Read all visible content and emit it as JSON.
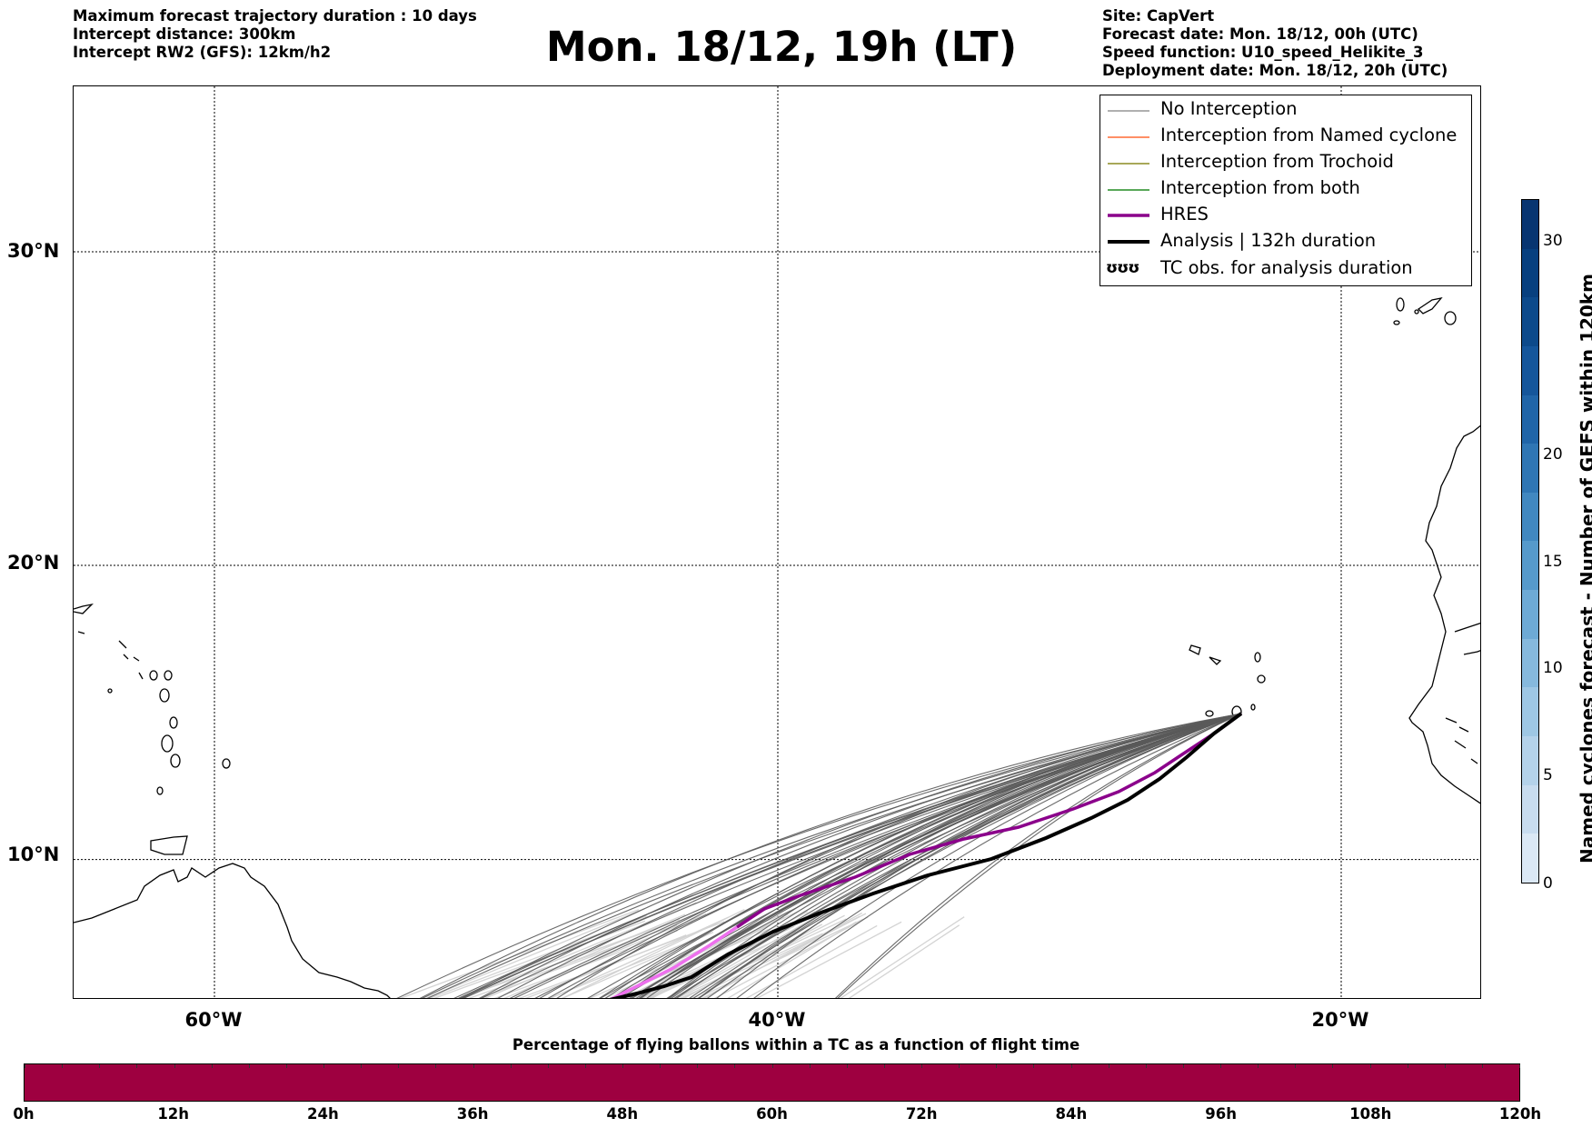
{
  "header": {
    "left_lines": [
      "Maximum forecast trajectory duration : 10 days",
      "Intercept distance: 300km",
      "Intercept RW2 (GFS):  12km/h2"
    ],
    "title": "Mon. 18/12, 19h (LT)",
    "right_lines": [
      "Site: CapVert",
      "Forecast date: Mon. 18/12, 00h (UTC)",
      "Speed function: U10_speed_Helikite_3",
      "Deployment date: Mon. 18/12, 20h (UTC)"
    ]
  },
  "map": {
    "lat_labels": [
      "30°N",
      "20°N",
      "10°N"
    ],
    "lon_labels": [
      "60°W",
      "40°W",
      "20°W"
    ],
    "gridline_color": "#000000",
    "launch_site": [
      -24.5,
      14.9
    ]
  },
  "legend": {
    "items": [
      {
        "label": "No Interception",
        "color": "#808080",
        "width": 1.2
      },
      {
        "label": "Interception from Named cyclone",
        "color": "#ff6a33",
        "width": 1.4
      },
      {
        "label": "Interception from Trochoid",
        "color": "#8b8b22",
        "width": 1.4
      },
      {
        "label": "Interception from both",
        "color": "#228b22",
        "width": 1.4
      },
      {
        "label": "HRES",
        "color": "#8b008b",
        "width": 3.5
      },
      {
        "label": "Analysis | 132h duration",
        "color": "#000000",
        "width": 4
      }
    ],
    "symbol_item": {
      "symbol": "ʊʊʊ",
      "label": "TC obs. for analysis duration"
    }
  },
  "colorbar_vertical": {
    "label": "Named cyclones forecast - Number of GEFS within 120km",
    "ticks": [
      "0",
      "5",
      "10",
      "15",
      "20",
      "30"
    ],
    "colors": [
      "#dbe8f5",
      "#c8dcef",
      "#b4d2ea",
      "#9ec7e4",
      "#86b9dd",
      "#6eaad5",
      "#569acb",
      "#4188c0",
      "#2f76b4",
      "#2065a8",
      "#15569b",
      "#0d4a8b",
      "#08407f",
      "#083571"
    ]
  },
  "colorbar_horizontal": {
    "label": "Percentage of flying ballons within a TC as a function of flight time",
    "ticks": [
      "0h",
      "12h",
      "24h",
      "36h",
      "48h",
      "60h",
      "72h",
      "84h",
      "96h",
      "108h",
      "120h"
    ],
    "color": "#9e0040"
  }
}
